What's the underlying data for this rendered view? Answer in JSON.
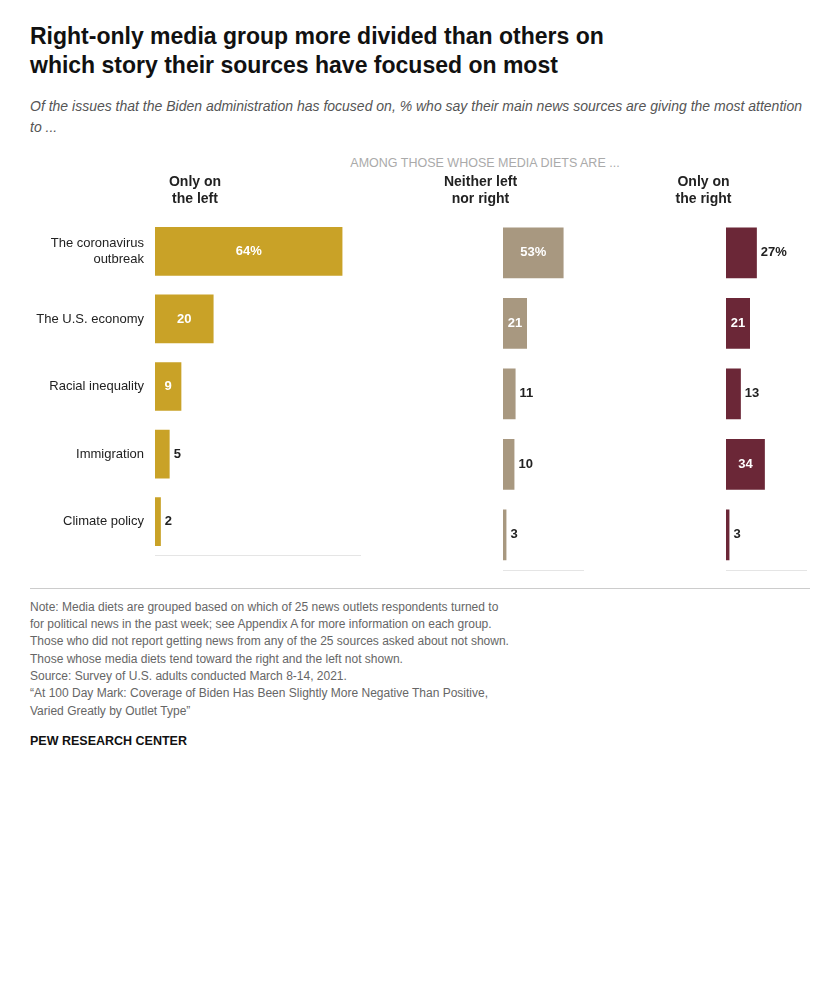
{
  "chart_data": {
    "type": "bar",
    "orientation": "horizontal",
    "title": "Right-only media group more divided than others on\nwhich story their sources have focused on most",
    "subtitle": "Of the issues that the Biden administration has focused on, % who say their main news sources are giving the most attention to ...",
    "annotations": [
      "AMONG THOSE WHOSE MEDIA DIETS ARE ...",
      "Note: Media diets are grouped based on which of 25 news outlets respondents turned to\nfor political news in the past week; see Appendix A for more information on each group.\nThose who did not report getting news from any of the 25 sources asked about not shown.\nThose whose media diets tend toward the right and the left not shown.\nSource: Survey of U.S. adults conducted March 8-14, 2021.\n“At 100 Day Mark: Coverage of Biden Has Been Slightly More Negative Than Positive,\nVaried Greatly by Outlet Type”",
      "PEW RESEARCH CENTER"
    ],
    "categories": [
      "The coronavirus\noutbreak",
      "The U.S. economy",
      "Racial inequality",
      "Immigration",
      "Climate policy"
    ],
    "series": [
      {
        "name": "Only on\nthe left",
        "color": "#C9A227",
        "values": [
          64,
          20,
          9,
          5,
          2
        ],
        "value_labels": [
          "64%",
          "20",
          "9",
          "5",
          "2"
        ]
      },
      {
        "name": "Neither left\nnor right",
        "color": "#A89880",
        "values": [
          53,
          21,
          11,
          10,
          3
        ],
        "value_labels": [
          "53%",
          "21",
          "11",
          "10",
          "3"
        ]
      },
      {
        "name": "Only on\nthe right",
        "color": "#6B2737",
        "values": [
          27,
          21,
          13,
          34,
          3
        ],
        "value_labels": [
          "27%",
          "21",
          "13",
          "34",
          "3"
        ]
      }
    ],
    "xlim": [
      0,
      70
    ],
    "data_labels": true,
    "tick_labels": "y",
    "grid": false
  }
}
